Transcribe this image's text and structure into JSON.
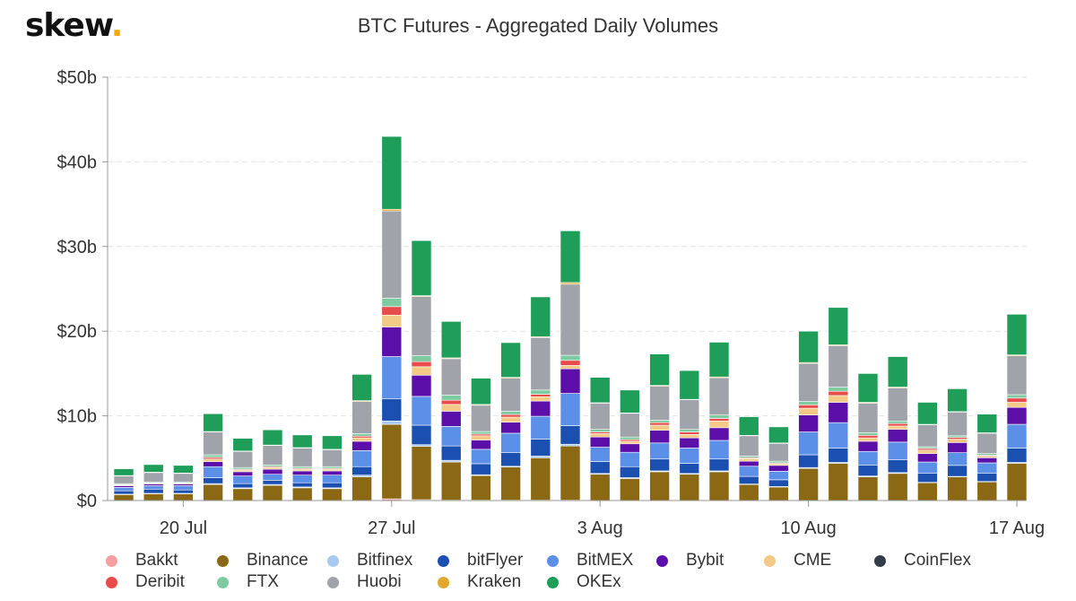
{
  "logo": {
    "text": "skew",
    "dot": "."
  },
  "chart_data": {
    "type": "bar",
    "stacked": true,
    "title": "BTC Futures - Aggregated Daily Volumes",
    "xlabel": "",
    "ylabel": "",
    "ylim": [
      0,
      50
    ],
    "yticks": [
      {
        "value": 0,
        "label": "$0"
      },
      {
        "value": 10,
        "label": "$10b"
      },
      {
        "value": 20,
        "label": "$20b"
      },
      {
        "value": 30,
        "label": "$30b"
      },
      {
        "value": 40,
        "label": "$40b"
      },
      {
        "value": 50,
        "label": "$50b"
      }
    ],
    "xticks": [
      {
        "index": 2,
        "label": "20 Jul"
      },
      {
        "index": 9,
        "label": "27 Jul"
      },
      {
        "index": 16,
        "label": "3 Aug"
      },
      {
        "index": 23,
        "label": "10 Aug"
      },
      {
        "index": 30,
        "label": "17 Aug"
      }
    ],
    "grid": true,
    "legend_position": "bottom",
    "categories": [
      "18 Jul",
      "19 Jul",
      "20 Jul",
      "21 Jul",
      "22 Jul",
      "23 Jul",
      "24 Jul",
      "25 Jul",
      "26 Jul",
      "27 Jul",
      "28 Jul",
      "29 Jul",
      "30 Jul",
      "31 Jul",
      "1 Aug",
      "2 Aug",
      "3 Aug",
      "4 Aug",
      "5 Aug",
      "6 Aug",
      "7 Aug",
      "8 Aug",
      "9 Aug",
      "10 Aug",
      "11 Aug",
      "12 Aug",
      "13 Aug",
      "14 Aug",
      "15 Aug",
      "16 Aug",
      "17 Aug"
    ],
    "series": [
      {
        "name": "Bakkt",
        "color": "#f4a0a0",
        "values": [
          0,
          0,
          0,
          0,
          0,
          0,
          0,
          0,
          0,
          0.2,
          0.1,
          0.05,
          0.05,
          0.05,
          0.05,
          0.05,
          0,
          0,
          0,
          0,
          0,
          0,
          0,
          0,
          0,
          0,
          0,
          0,
          0,
          0,
          0
        ]
      },
      {
        "name": "Binance",
        "color": "#8b6914",
        "values": [
          0.7,
          0.8,
          0.8,
          1.9,
          1.4,
          1.8,
          1.5,
          1.4,
          2.8,
          8.8,
          6.3,
          4.5,
          2.9,
          3.9,
          5.0,
          6.4,
          3.1,
          2.6,
          3.4,
          3.1,
          3.4,
          1.9,
          1.6,
          3.8,
          4.4,
          2.8,
          3.2,
          2.1,
          2.8,
          2.2,
          4.4
        ]
      },
      {
        "name": "Bitfinex",
        "color": "#a8c8f0",
        "values": [
          0.05,
          0.05,
          0.05,
          0.1,
          0.1,
          0.1,
          0.1,
          0.1,
          0.2,
          0.4,
          0.2,
          0.2,
          0.1,
          0.1,
          0.2,
          0.2,
          0.1,
          0.1,
          0.1,
          0.1,
          0.1,
          0.05,
          0.05,
          0.1,
          0.1,
          0.1,
          0.1,
          0.05,
          0.05,
          0.05,
          0.1
        ]
      },
      {
        "name": "bitFlyer",
        "color": "#1b4fb0",
        "values": [
          0.4,
          0.5,
          0.4,
          0.7,
          0.5,
          0.5,
          0.5,
          0.6,
          1.0,
          2.6,
          2.3,
          1.7,
          1.3,
          1.6,
          2.0,
          2.2,
          1.4,
          1.3,
          1.4,
          1.2,
          1.4,
          0.9,
          0.8,
          1.5,
          1.7,
          1.3,
          1.5,
          1.1,
          1.3,
          1.0,
          1.7
        ]
      },
      {
        "name": "BitMEX",
        "color": "#5b8fe8",
        "values": [
          0.4,
          0.4,
          0.5,
          1.3,
          0.9,
          0.7,
          0.9,
          0.9,
          1.9,
          5.0,
          3.4,
          2.3,
          1.7,
          2.3,
          2.7,
          3.8,
          1.7,
          1.7,
          1.9,
          1.8,
          2.2,
          1.2,
          1.0,
          2.7,
          3.0,
          1.6,
          2.1,
          1.3,
          1.5,
          1.2,
          2.8
        ]
      },
      {
        "name": "Bybit",
        "color": "#5c0fa8",
        "values": [
          0.2,
          0.2,
          0.2,
          0.6,
          0.5,
          0.6,
          0.5,
          0.5,
          1.1,
          3.5,
          2.5,
          1.8,
          1.1,
          1.3,
          1.8,
          2.9,
          1.2,
          1.0,
          1.5,
          1.2,
          1.5,
          0.6,
          0.7,
          2.0,
          2.4,
          1.2,
          1.5,
          1.0,
          1.2,
          0.6,
          2.0
        ]
      },
      {
        "name": "CME",
        "color": "#f2c987",
        "values": [
          0.1,
          0.1,
          0.1,
          0.3,
          0.2,
          0.2,
          0.2,
          0.2,
          0.4,
          1.4,
          1.0,
          0.8,
          0.5,
          0.6,
          0.5,
          0.4,
          0.4,
          0.3,
          0.6,
          0.4,
          0.8,
          0.3,
          0.2,
          0.8,
          0.8,
          0.4,
          0.4,
          0.4,
          0.4,
          0.2,
          0.6
        ]
      },
      {
        "name": "CoinFlex",
        "color": "#333d47",
        "values": [
          0,
          0,
          0,
          0,
          0,
          0,
          0,
          0,
          0,
          0,
          0,
          0,
          0,
          0,
          0,
          0,
          0,
          0,
          0,
          0,
          0,
          0,
          0,
          0,
          0,
          0,
          0,
          0,
          0,
          0,
          0
        ]
      },
      {
        "name": "Deribit",
        "color": "#e94a4a",
        "values": [
          0.05,
          0.05,
          0.05,
          0.2,
          0.1,
          0.1,
          0.1,
          0.1,
          0.2,
          1.0,
          0.6,
          0.5,
          0.2,
          0.3,
          0.3,
          0.6,
          0.2,
          0.2,
          0.3,
          0.3,
          0.3,
          0.1,
          0.1,
          0.4,
          0.5,
          0.3,
          0.3,
          0.2,
          0.2,
          0.1,
          0.5
        ]
      },
      {
        "name": "FTX",
        "color": "#7ecba1",
        "values": [
          0.1,
          0.1,
          0.1,
          0.3,
          0.2,
          0.2,
          0.2,
          0.2,
          0.3,
          1.0,
          0.7,
          0.6,
          0.3,
          0.4,
          0.5,
          0.6,
          0.3,
          0.3,
          0.3,
          0.3,
          0.4,
          0.2,
          0.2,
          0.4,
          0.5,
          0.3,
          0.3,
          0.2,
          0.2,
          0.2,
          0.4
        ]
      },
      {
        "name": "Huobi",
        "color": "#a0a4aa",
        "values": [
          0.9,
          1.1,
          1.0,
          2.7,
          1.9,
          2.3,
          2.2,
          2.0,
          3.8,
          10.3,
          7.0,
          4.3,
          3.1,
          3.9,
          6.2,
          8.4,
          3.1,
          2.8,
          4.0,
          3.5,
          4.4,
          2.4,
          2.1,
          4.5,
          4.9,
          3.5,
          3.9,
          2.6,
          2.8,
          2.4,
          4.6
        ]
      },
      {
        "name": "Kraken",
        "color": "#e0a82e",
        "values": [
          0.05,
          0.05,
          0.05,
          0.05,
          0.05,
          0.05,
          0.05,
          0.05,
          0.1,
          0.2,
          0.1,
          0.1,
          0.1,
          0.1,
          0.1,
          0.2,
          0.05,
          0.05,
          0.1,
          0.05,
          0.1,
          0.05,
          0.05,
          0.1,
          0.1,
          0.1,
          0.1,
          0.05,
          0.05,
          0.05,
          0.1
        ]
      },
      {
        "name": "OKEx",
        "color": "#1f9e5a",
        "values": [
          0.8,
          0.9,
          0.9,
          2.1,
          1.5,
          1.8,
          1.5,
          1.6,
          3.1,
          8.6,
          6.5,
          4.3,
          3.1,
          4.1,
          4.7,
          6.1,
          3.0,
          2.7,
          3.7,
          3.4,
          4.1,
          2.2,
          1.9,
          3.7,
          4.4,
          3.4,
          3.6,
          2.6,
          2.7,
          2.2,
          4.8
        ]
      }
    ]
  }
}
